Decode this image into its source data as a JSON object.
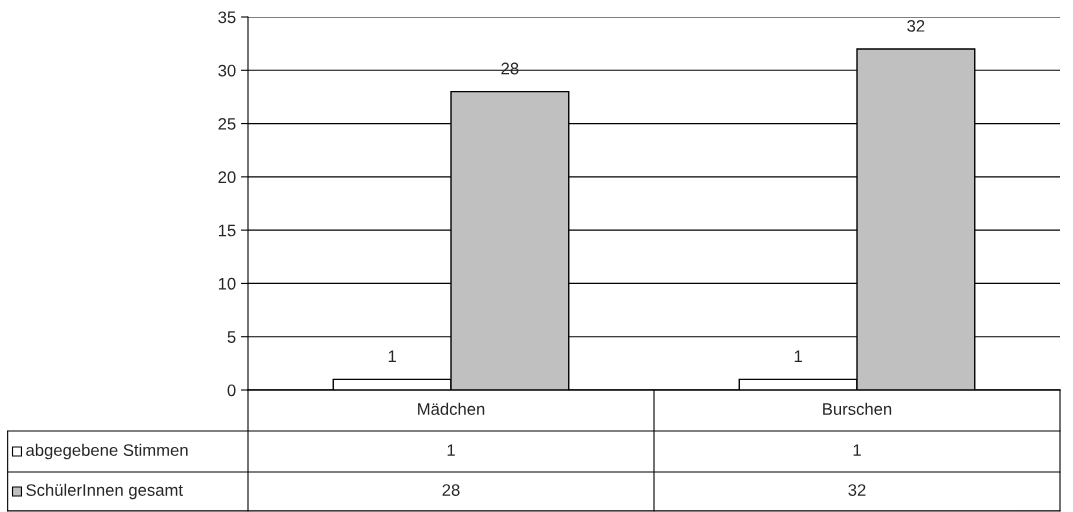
{
  "chart_data": {
    "type": "bar",
    "categories": [
      "Mädchen",
      "Burschen"
    ],
    "series": [
      {
        "name": "abgegebene Stimmen",
        "color": "#ffffff",
        "values": [
          1,
          1
        ],
        "value_labels": [
          "1",
          "1"
        ]
      },
      {
        "name": "SchülerInnen gesamt",
        "color": "#c0c0c0",
        "values": [
          28,
          32
        ],
        "value_labels": [
          "28",
          "32"
        ]
      }
    ],
    "ylim": [
      0,
      35
    ],
    "yticks": [
      0,
      5,
      10,
      15,
      20,
      25,
      30,
      35
    ],
    "grid": "y",
    "data_labels": true,
    "legend": "bottom left"
  }
}
